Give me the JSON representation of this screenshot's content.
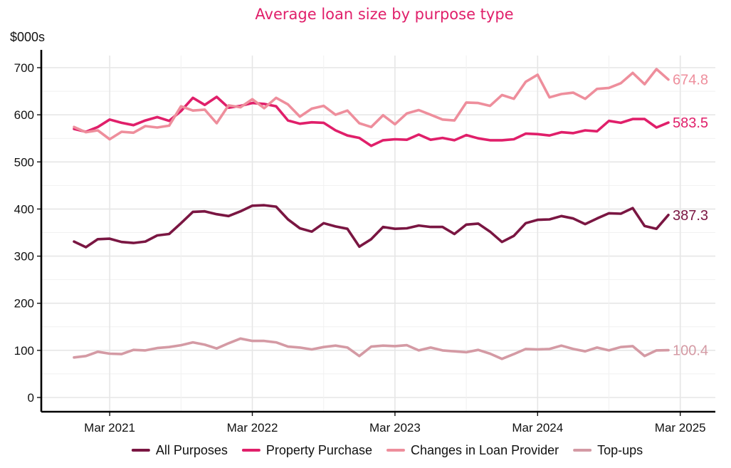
{
  "chart_data": {
    "type": "line",
    "title": "Average loan size by purpose type",
    "y_unit_label": "$000s",
    "ylim": [
      0,
      700
    ],
    "y_ticks": [
      0,
      100,
      200,
      300,
      400,
      500,
      600,
      700
    ],
    "x_start": "2020-12",
    "x_end": "2025-03",
    "x_ticks": [
      {
        "date": "2021-03",
        "label": "Mar 2021"
      },
      {
        "date": "2022-03",
        "label": "Mar 2022"
      },
      {
        "date": "2023-03",
        "label": "Mar 2023"
      },
      {
        "date": "2024-03",
        "label": "Mar 2024"
      },
      {
        "date": "2025-03",
        "label": "Mar 2025"
      }
    ],
    "grid": true,
    "legend_position": "bottom",
    "series": [
      {
        "name": "All Purposes",
        "color": "#7a1642",
        "end_label": "387.3",
        "values": [
          331,
          319,
          336,
          337,
          330,
          328,
          331,
          344,
          347,
          370,
          394,
          395,
          389,
          385,
          395,
          407,
          408,
          405,
          378,
          359,
          352,
          370,
          363,
          358,
          320,
          336,
          362,
          358,
          359,
          365,
          362,
          362,
          347,
          367,
          369,
          352,
          330,
          343,
          370,
          377,
          378,
          385,
          380,
          368,
          380,
          391,
          390,
          402,
          364,
          358,
          387.3
        ]
      },
      {
        "name": "Property Purchase",
        "color": "#e01f6a",
        "end_label": "583.5",
        "values": [
          570,
          564,
          574,
          590,
          583,
          578,
          588,
          595,
          587,
          608,
          636,
          621,
          638,
          615,
          619,
          625,
          623,
          618,
          588,
          581,
          584,
          583,
          567,
          556,
          551,
          534,
          546,
          548,
          547,
          558,
          547,
          551,
          546,
          557,
          550,
          546,
          546,
          548,
          560,
          559,
          556,
          563,
          561,
          567,
          565,
          587,
          583,
          591,
          591,
          573,
          583.5
        ]
      },
      {
        "name": "Changes in Loan Provider",
        "color": "#ee8e9c",
        "end_label": "674.8",
        "values": [
          574,
          563,
          567,
          548,
          564,
          562,
          576,
          573,
          577,
          618,
          609,
          611,
          582,
          620,
          616,
          633,
          614,
          636,
          622,
          596,
          613,
          619,
          600,
          609,
          582,
          574,
          599,
          580,
          603,
          610,
          600,
          590,
          588,
          626,
          625,
          619,
          642,
          634,
          670,
          685,
          637,
          644,
          647,
          634,
          655,
          657,
          667,
          689,
          665,
          697,
          674.8
        ]
      },
      {
        "name": "Top-ups",
        "color": "#d49aa4",
        "end_label": "100.4",
        "values": [
          85,
          88,
          97,
          93,
          92,
          101,
          100,
          105,
          107,
          111,
          117,
          112,
          104,
          115,
          125,
          120,
          120,
          117,
          108,
          106,
          102,
          107,
          110,
          106,
          88,
          108,
          110,
          109,
          111,
          100,
          106,
          100,
          98,
          96,
          101,
          93,
          82,
          92,
          103,
          102,
          103,
          110,
          103,
          98,
          106,
          100,
          107,
          109,
          88,
          100,
          100.4
        ]
      }
    ]
  }
}
